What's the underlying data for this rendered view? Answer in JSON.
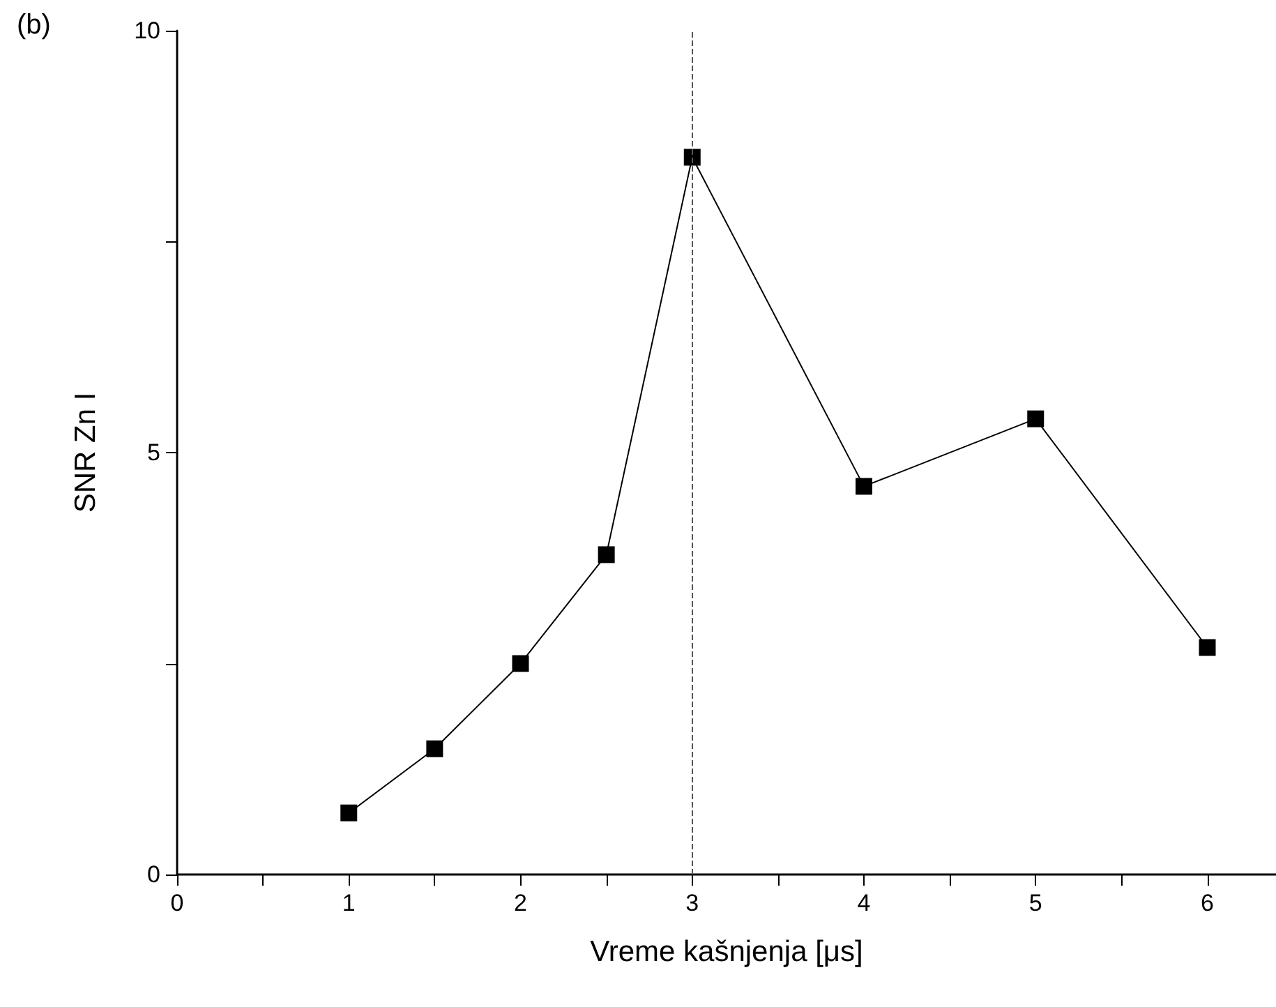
{
  "chart_data": {
    "type": "line",
    "xlabel": "Vreme kašnjenja [μs]",
    "ylabel": "SNR Zn I",
    "annotations": [
      "(b)"
    ],
    "x": [
      1,
      1.5,
      2,
      2.5,
      3,
      4,
      5,
      6
    ],
    "series": [
      {
        "color": "#000000",
        "values": [
          0.73,
          1.49,
          2.5,
          3.79,
          8.5,
          4.6,
          5.4,
          2.69
        ]
      }
    ],
    "xlim": [
      0,
      6.4
    ],
    "ylim": [
      0,
      10
    ],
    "xticks": [
      0,
      {
        "value": 0.5,
        "label": null
      },
      1,
      {
        "value": 1.5,
        "label": null
      },
      2,
      {
        "value": 2.5,
        "label": null
      },
      3,
      {
        "value": 3.5,
        "label": null
      },
      4,
      {
        "value": 4.5,
        "label": null
      },
      5,
      {
        "value": 5.5,
        "label": null
      },
      6
    ],
    "yticks": [
      0,
      {
        "value": 2.5,
        "label": null
      },
      5,
      {
        "value": 7.5,
        "label": null
      },
      10
    ],
    "ref_lines": [
      {
        "axis": "x",
        "value": 3,
        "color": "#555555",
        "line_style": "dashed"
      }
    ],
    "marker": "square",
    "line_style": "solid",
    "grid": false
  }
}
